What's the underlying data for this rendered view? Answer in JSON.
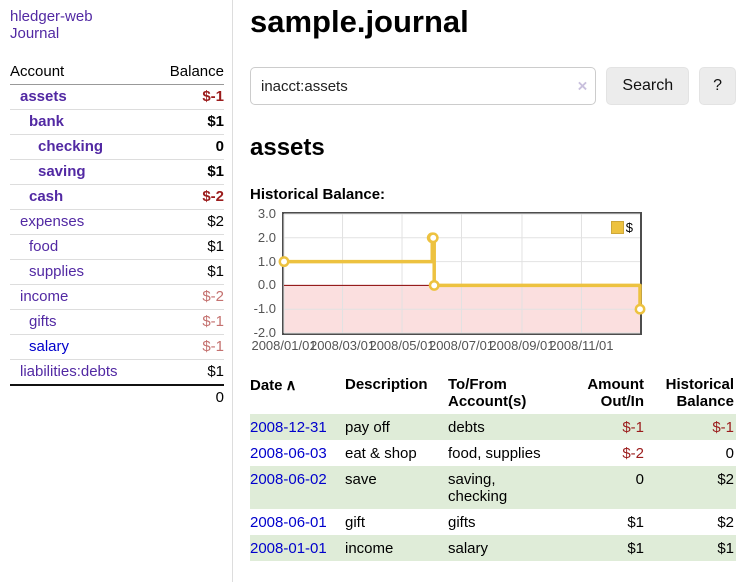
{
  "colors": {
    "link_purple": "#5229a3",
    "link_blue": "#0000cc",
    "neg_strong": "#9b1c1c",
    "neg_soft": "#c4716f",
    "row_green": "#dfecd8",
    "button_bg": "#ececec",
    "chart_line": "#edc240",
    "chart_neg_bg": "#fbdfdf",
    "zero_line": "#8b0000",
    "grid_line": "#e2e2e2",
    "axis_text": "#545454",
    "chart_border": "#4d4d4d"
  },
  "app": {
    "title": "hledger-web",
    "journal_link": "Journal"
  },
  "sidebar": {
    "headers": [
      "Account",
      "Balance"
    ],
    "rows": [
      {
        "account": "assets",
        "level": 0,
        "bold": true,
        "balance": "$-1",
        "balance_class": "neg-strong"
      },
      {
        "account": "bank",
        "level": 1,
        "bold": true,
        "balance": "$1",
        "balance_class": ""
      },
      {
        "account": "checking",
        "level": 2,
        "bold": true,
        "balance": "0",
        "balance_class": ""
      },
      {
        "account": "saving",
        "level": 2,
        "bold": true,
        "balance": "$1",
        "balance_class": ""
      },
      {
        "account": "cash",
        "level": 1,
        "bold": true,
        "balance": "$-2",
        "balance_class": "neg-strong"
      },
      {
        "account": "expenses",
        "level": 0,
        "bold": false,
        "balance": "$2",
        "balance_class": ""
      },
      {
        "account": "food",
        "level": 1,
        "bold": false,
        "balance": "$1",
        "balance_class": ""
      },
      {
        "account": "supplies",
        "level": 1,
        "bold": false,
        "balance": "$1",
        "balance_class": ""
      },
      {
        "account": "income",
        "level": 0,
        "bold": false,
        "balance": "$-2",
        "balance_class": "neg-soft"
      },
      {
        "account": "gifts",
        "level": 1,
        "bold": false,
        "balance": "$-1",
        "balance_class": "neg-soft"
      },
      {
        "account": "salary",
        "level": 1,
        "bold": false,
        "blue": true,
        "balance": "$-1",
        "balance_class": "neg-soft"
      },
      {
        "account": "liabilities:debts",
        "level": 0,
        "bold": false,
        "balance": "$1",
        "balance_class": ""
      }
    ],
    "total": "0"
  },
  "main": {
    "title": "sample.journal",
    "search": {
      "value": "inacct:assets",
      "clear_icon": "×",
      "button_label": "Search",
      "help_label": "?"
    },
    "section_title": "assets",
    "chart_label": "Historical Balance:"
  },
  "chart_data": {
    "type": "line",
    "step": true,
    "title": "Historical Balance",
    "ylim": [
      -2,
      3
    ],
    "x_range": [
      "2008-01-01",
      "2008-12-31"
    ],
    "yticks": [
      {
        "value": 3,
        "label": "3.0"
      },
      {
        "value": 2,
        "label": "2.0"
      },
      {
        "value": 1,
        "label": "1.0"
      },
      {
        "value": 0,
        "label": "0.0"
      },
      {
        "value": -1,
        "label": "-1.0"
      },
      {
        "value": -2,
        "label": "-2.0"
      }
    ],
    "xticks": [
      {
        "date": "2008-01-01",
        "label": "2008/01/01"
      },
      {
        "date": "2008-03-01",
        "label": "2008/03/01"
      },
      {
        "date": "2008-05-01",
        "label": "2008/05/01"
      },
      {
        "date": "2008-07-01",
        "label": "2008/07/01"
      },
      {
        "date": "2008-09-01",
        "label": "2008/09/01"
      },
      {
        "date": "2008-11-01",
        "label": "2008/11/01"
      }
    ],
    "legend_position": "top-right",
    "grid": true,
    "series": [
      {
        "name": "$",
        "points": [
          [
            "2008-01-01",
            1
          ],
          [
            "2008-06-01",
            2
          ],
          [
            "2008-06-02",
            2
          ],
          [
            "2008-06-03",
            0
          ],
          [
            "2008-12-31",
            -1
          ]
        ]
      }
    ]
  },
  "register": {
    "headers": {
      "date": "Date",
      "description": "Description",
      "accounts": "To/From Account(s)",
      "amount": "Amount Out/In",
      "balance": "Historical Balance"
    },
    "sort_icon": "∧",
    "rows": [
      {
        "date": "2008-12-31",
        "description": "pay off",
        "accounts": "debts",
        "amount": "$-1",
        "amount_class": "neg",
        "balance": "$-1",
        "balance_class": "neg",
        "shaded": true
      },
      {
        "date": "2008-06-03",
        "description": "eat & shop",
        "accounts": "food, supplies",
        "amount": "$-2",
        "amount_class": "neg",
        "balance": "0",
        "balance_class": "",
        "shaded": false
      },
      {
        "date": "2008-06-02",
        "description": "save",
        "accounts": "saving, checking",
        "amount": "0",
        "amount_class": "",
        "balance": "$2",
        "balance_class": "",
        "shaded": true
      },
      {
        "date": "2008-06-01",
        "description": "gift",
        "accounts": "gifts",
        "amount": "$1",
        "amount_class": "",
        "balance": "$2",
        "balance_class": "",
        "shaded": false
      },
      {
        "date": "2008-01-01",
        "description": "income",
        "accounts": "salary",
        "amount": "$1",
        "amount_class": "",
        "balance": "$1",
        "balance_class": "",
        "shaded": true
      }
    ]
  }
}
